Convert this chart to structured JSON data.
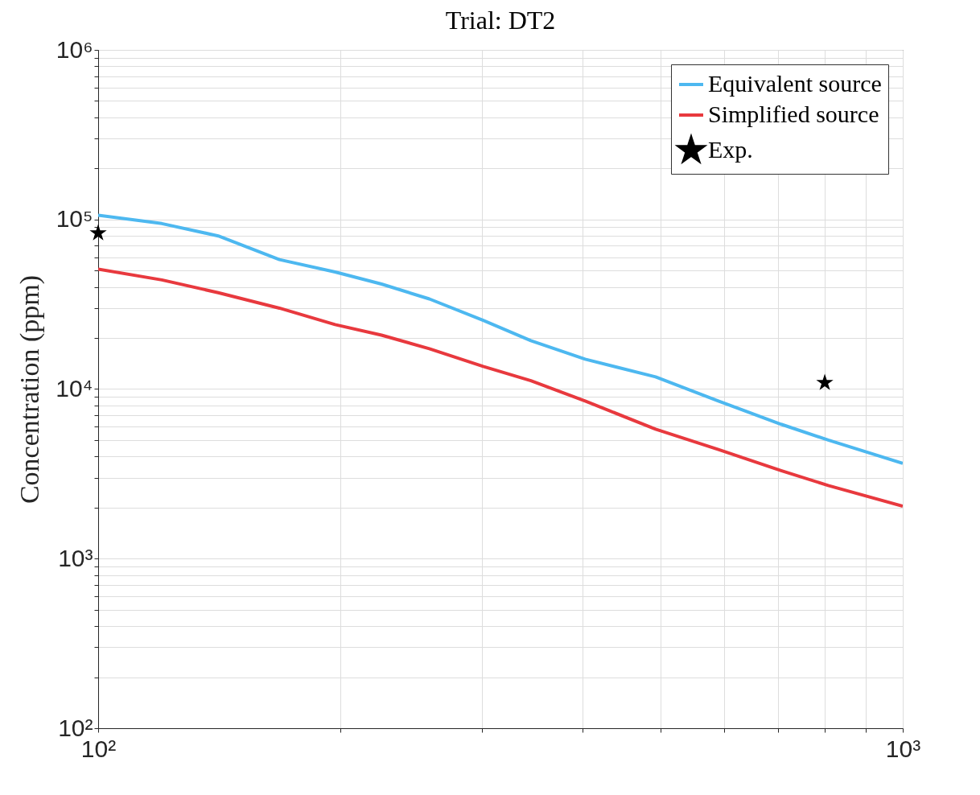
{
  "chart_data": {
    "type": "line",
    "title": "Trial: DT2",
    "ylabel": "Concentration (ppm)",
    "log": "xy",
    "grid": true,
    "legend": "top right",
    "xlim": [
      100,
      1000
    ],
    "ylim": [
      100,
      1000000
    ],
    "xticks": [
      {
        "value": 100,
        "label": "10²"
      },
      {
        "value": 200,
        "label": null
      },
      {
        "value": 300,
        "label": null
      },
      {
        "value": 400,
        "label": null
      },
      {
        "value": 500,
        "label": null
      },
      {
        "value": 600,
        "label": null
      },
      {
        "value": 700,
        "label": null
      },
      {
        "value": 800,
        "label": null
      },
      {
        "value": 900,
        "label": null
      },
      {
        "value": 1000,
        "label": "10³"
      }
    ],
    "yticks": [
      {
        "value": 100,
        "label": "10²"
      },
      {
        "value": 200,
        "label": null
      },
      {
        "value": 300,
        "label": null
      },
      {
        "value": 400,
        "label": null
      },
      {
        "value": 500,
        "label": null
      },
      {
        "value": 600,
        "label": null
      },
      {
        "value": 700,
        "label": null
      },
      {
        "value": 800,
        "label": null
      },
      {
        "value": 900,
        "label": null
      },
      {
        "value": 1000,
        "label": "10³"
      },
      {
        "value": 2000,
        "label": null
      },
      {
        "value": 3000,
        "label": null
      },
      {
        "value": 4000,
        "label": null
      },
      {
        "value": 5000,
        "label": null
      },
      {
        "value": 6000,
        "label": null
      },
      {
        "value": 7000,
        "label": null
      },
      {
        "value": 8000,
        "label": null
      },
      {
        "value": 9000,
        "label": null
      },
      {
        "value": 10000,
        "label": "10⁴"
      },
      {
        "value": 20000,
        "label": null
      },
      {
        "value": 30000,
        "label": null
      },
      {
        "value": 40000,
        "label": null
      },
      {
        "value": 50000,
        "label": null
      },
      {
        "value": 60000,
        "label": null
      },
      {
        "value": 70000,
        "label": null
      },
      {
        "value": 80000,
        "label": null
      },
      {
        "value": 90000,
        "label": null
      },
      {
        "value": 100000,
        "label": "10⁵"
      },
      {
        "value": 200000,
        "label": null
      },
      {
        "value": 300000,
        "label": null
      },
      {
        "value": 400000,
        "label": null
      },
      {
        "value": 500000,
        "label": null
      },
      {
        "value": 600000,
        "label": null
      },
      {
        "value": 700000,
        "label": null
      },
      {
        "value": 800000,
        "label": null
      },
      {
        "value": 900000,
        "label": null
      },
      {
        "value": 1000000,
        "label": "10⁶"
      }
    ],
    "series": [
      {
        "name": "Equivalent source",
        "color": "#4db8f0",
        "x": [
          100,
          120,
          141,
          168,
          197,
          225,
          258,
          301,
          345,
          403,
          493,
          590,
          706,
          808,
          1000
        ],
        "values": [
          106000,
          94600,
          80000,
          58000,
          49000,
          41600,
          34000,
          25400,
          19300,
          15000,
          11800,
          8500,
          6200,
          5000,
          3650
        ]
      },
      {
        "name": "Simplified source",
        "color": "#e8393e",
        "x": [
          100,
          120,
          141,
          168,
          197,
          225,
          258,
          301,
          345,
          403,
          493,
          590,
          706,
          808,
          1000
        ],
        "values": [
          51000,
          44000,
          37000,
          30000,
          24000,
          20800,
          17300,
          13600,
          11200,
          8500,
          5800,
          4400,
          3300,
          2700,
          2040
        ]
      },
      {
        "name": "Exp.",
        "type": "scatter",
        "marker": "star",
        "color": "#000000",
        "x": [
          100,
          800
        ],
        "values": [
          83000,
          10900
        ]
      }
    ]
  }
}
